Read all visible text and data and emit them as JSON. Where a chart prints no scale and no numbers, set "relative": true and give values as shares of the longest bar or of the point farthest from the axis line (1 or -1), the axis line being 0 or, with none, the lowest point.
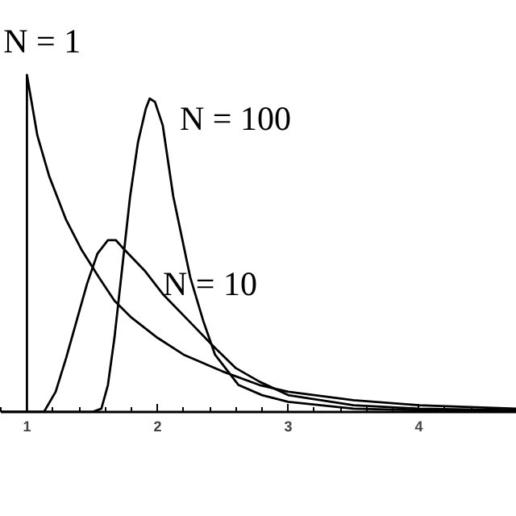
{
  "chart_data": {
    "type": "line",
    "relative": true,
    "legend": false,
    "grid": false,
    "marker": "none",
    "line_style": "solid",
    "xlim": [
      0.8,
      4.75
    ],
    "xticks": [
      1,
      2,
      3,
      4
    ],
    "tick_labels": "x",
    "series": [
      {
        "name": "N = 1",
        "color": "#000000",
        "x": [
          1,
          1,
          1.08,
          1.17,
          1.3,
          1.42,
          1.55,
          1.67,
          1.8,
          2,
          2.2,
          2.5,
          2.78,
          3,
          3.5,
          4,
          4.75
        ],
        "values": [
          0,
          1,
          0.82,
          0.7,
          0.57,
          0.48,
          0.4,
          0.33,
          0.28,
          0.22,
          0.17,
          0.12,
          0.08,
          0.06,
          0.035,
          0.02,
          0.01
        ]
      },
      {
        "name": "N = 10",
        "color": "#000000",
        "x": [
          0.8,
          1.13,
          1.22,
          1.3,
          1.38,
          1.46,
          1.54,
          1.62,
          1.68,
          1.75,
          1.9,
          2.04,
          2.24,
          2.44,
          2.6,
          2.78,
          3,
          3.5,
          4,
          4.75
        ],
        "values": [
          0,
          0,
          0.06,
          0.16,
          0.27,
          0.38,
          0.47,
          0.51,
          0.51,
          0.48,
          0.42,
          0.35,
          0.27,
          0.19,
          0.13,
          0.09,
          0.05,
          0.02,
          0.01,
          0.005
        ]
      },
      {
        "name": "N = 100",
        "color": "#000000",
        "x": [
          0.8,
          1.5,
          1.57,
          1.62,
          1.67,
          1.73,
          1.79,
          1.85,
          1.91,
          1.94,
          1.98,
          2.04,
          2.12,
          2.25,
          2.35,
          2.44,
          2.62,
          2.8,
          3,
          3.5,
          4,
          4.75
        ],
        "values": [
          0,
          0,
          0.01,
          0.08,
          0.22,
          0.43,
          0.64,
          0.8,
          0.9,
          0.93,
          0.92,
          0.85,
          0.64,
          0.4,
          0.27,
          0.17,
          0.08,
          0.05,
          0.03,
          0.01,
          0.005,
          0.002
        ]
      }
    ]
  }
}
